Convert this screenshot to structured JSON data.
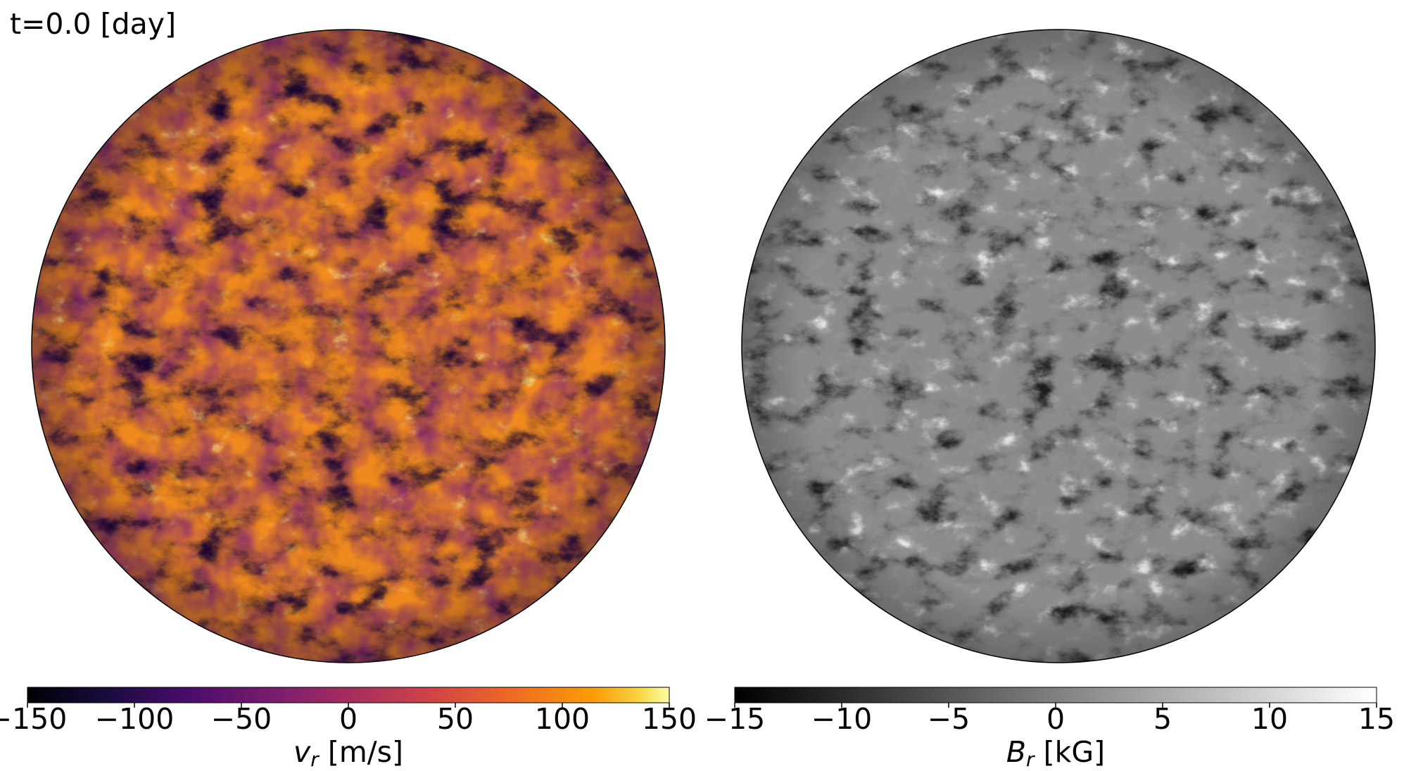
{
  "time_label": "t=0.0 [day]",
  "left_panel": {
    "name": "radial velocity map",
    "colormap": "inferno",
    "colorbar": {
      "range": [
        -150,
        150
      ],
      "ticks": [
        "−150",
        "−100",
        "−50",
        "0",
        "50",
        "100",
        "150"
      ],
      "tick_values": [
        -150,
        -100,
        -50,
        0,
        50,
        100,
        150
      ],
      "symbol": "v",
      "subscript": "r",
      "unit": "[m/s]"
    }
  },
  "right_panel": {
    "name": "radial magnetic field map",
    "colormap": "gray",
    "colorbar": {
      "range": [
        -15,
        15
      ],
      "ticks": [
        "−15",
        "−10",
        "−5",
        "0",
        "5",
        "10",
        "15"
      ],
      "tick_values": [
        -15,
        -10,
        -5,
        0,
        5,
        10,
        15
      ],
      "symbol": "B",
      "subscript": "r",
      "unit": "[kG]"
    }
  }
}
